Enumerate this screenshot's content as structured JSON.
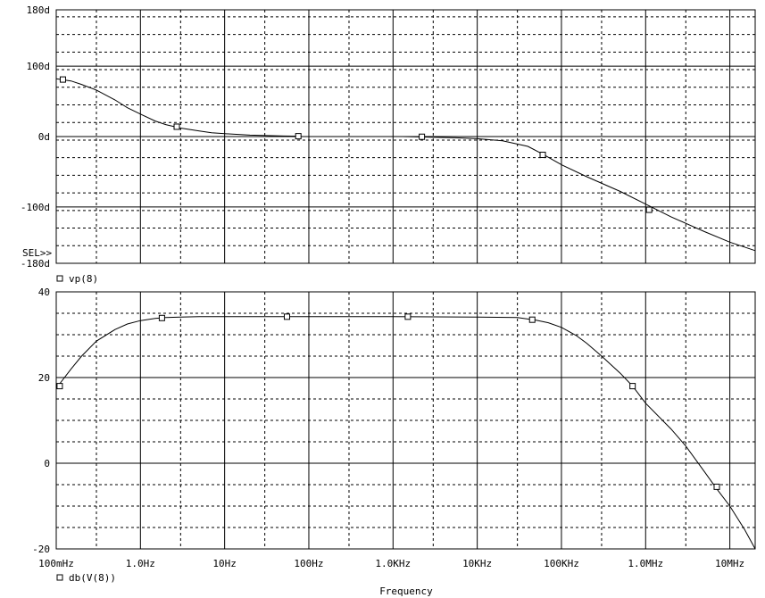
{
  "chart_data": [
    {
      "type": "line",
      "xscale": "log",
      "xlim": [
        0.1,
        20000000
      ],
      "ylim": [
        -180,
        180
      ],
      "ytick_values": [
        180,
        100,
        0,
        -100,
        -180
      ],
      "ytick_labels": [
        "180d",
        "100d",
        "0d",
        "-100d",
        "-180d"
      ],
      "minor_y_step": 25,
      "grid": true,
      "selection_marker": "SEL>>",
      "series": [
        {
          "name": "vp(8)",
          "segments": [
            {
              "x": [
                0.1,
                0.15,
                0.2,
                0.3,
                0.5,
                0.7,
                1.0,
                1.5,
                2.0,
                3.0,
                5.0,
                7.0,
                10,
                20,
                50,
                80
              ],
              "y": [
                82,
                79,
                74,
                66,
                52,
                41,
                32,
                22,
                17,
                12,
                8,
                5.5,
                4,
                2,
                0.8,
                0.5
              ]
            },
            {
              "x": [
                1300,
                2000,
                5000,
                10000,
                20000,
                40000,
                60000,
                100000,
                200000,
                500000,
                1000000,
                2000000,
                5000000,
                10000000,
                20000000
              ],
              "y": [
                0,
                -0.5,
                -1.5,
                -3,
                -6,
                -14,
                -25,
                -40,
                -57,
                -78,
                -96,
                -114,
                -135,
                -150,
                -162
              ]
            }
          ],
          "markers": [
            {
              "x": 0.12,
              "y": 81
            },
            {
              "x": 2.7,
              "y": 14
            },
            {
              "x": 75,
              "y": 0.5
            },
            {
              "x": 2200,
              "y": -0.3
            },
            {
              "x": 60000,
              "y": -26
            },
            {
              "x": 1100000,
              "y": -104
            }
          ]
        }
      ]
    },
    {
      "type": "line",
      "xscale": "log",
      "xlim": [
        0.1,
        20000000
      ],
      "ylim": [
        -20,
        40
      ],
      "ytick_values": [
        40,
        20,
        0,
        -20
      ],
      "ytick_labels": [
        "40",
        "20",
        "0",
        "-20"
      ],
      "minor_y_step": 5,
      "grid": true,
      "xtick_labels": [
        "100mHz",
        "1.0Hz",
        "10Hz",
        "100Hz",
        "1.0KHz",
        "10KHz",
        "100KHz",
        "1.0MHz",
        "10MHz"
      ],
      "xtick_values": [
        0.1,
        1,
        10,
        100,
        1000,
        10000,
        100000,
        1000000,
        10000000
      ],
      "xlabel": "Frequency",
      "series": [
        {
          "name": "db(V(8))",
          "x": [
            0.1,
            0.15,
            0.2,
            0.3,
            0.5,
            0.7,
            1.0,
            1.5,
            2.0,
            3.0,
            5.0,
            10,
            100,
            1000,
            10000,
            30000,
            50000,
            70000,
            100000,
            150000,
            200000,
            300000,
            500000,
            700000,
            1000000,
            2000000,
            3000000,
            5000000,
            7000000,
            10000000,
            15000000,
            20000000
          ],
          "y": [
            17.5,
            22,
            25,
            28.5,
            31.2,
            32.5,
            33.3,
            33.8,
            34,
            34.1,
            34.2,
            34.2,
            34.2,
            34.2,
            34.1,
            34,
            33.4,
            32.8,
            31.7,
            29.8,
            28,
            25,
            21,
            18,
            14,
            8,
            4,
            -2,
            -6,
            -10,
            -15.5,
            -20
          ]
        }
      ],
      "markers": [
        {
          "x": 0.11,
          "y": 18
        },
        {
          "x": 1.8,
          "y": 33.9
        },
        {
          "x": 55,
          "y": 34.2
        },
        {
          "x": 1500,
          "y": 34.2
        },
        {
          "x": 45000,
          "y": 33.5
        },
        {
          "x": 700000,
          "y": 18
        },
        {
          "x": 7000000,
          "y": -5.5
        }
      ]
    }
  ],
  "legend": {
    "top": "vp(8)",
    "bottom": "db(V(8))"
  }
}
